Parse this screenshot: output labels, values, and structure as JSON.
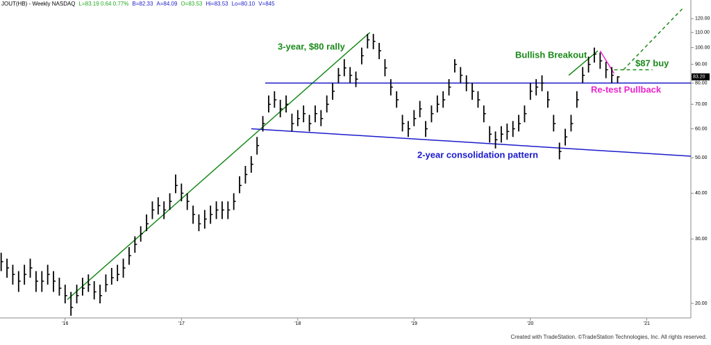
{
  "chart_data": {
    "type": "ohlc",
    "header": [
      {
        "text": "JOUT(HB) - Weekly  NASDAQ",
        "color": "#000000"
      },
      {
        "text": "L=83.19 0.64 0.77%",
        "color": "#22aa22"
      },
      {
        "text": "B=82.33",
        "color": "#2222cc"
      },
      {
        "text": "A=84.09",
        "color": "#2222cc"
      },
      {
        "text": "O=83.53",
        "color": "#22aa22"
      },
      {
        "text": "Hi=83.53",
        "color": "#2222cc"
      },
      {
        "text": "Lo=80.10",
        "color": "#2222cc"
      },
      {
        "text": "V=845",
        "color": "#2222cc"
      }
    ],
    "footer": "Created with TradeStation. ©TradeStation Technologies, Inc. All rights reserved.",
    "log_scale": true,
    "color": "#000000",
    "xlim": [
      2015.44,
      2021.38
    ],
    "ylim": [
      18.25,
      130.3
    ],
    "xticks": [
      {
        "value": 2016,
        "label": "'16"
      },
      {
        "value": 2017,
        "label": "'17"
      },
      {
        "value": 2018,
        "label": "'18"
      },
      {
        "value": 2019,
        "label": "'19"
      },
      {
        "value": 2020,
        "label": "'20"
      },
      {
        "value": 2021,
        "label": "'21"
      }
    ],
    "yticks": [
      {
        "value": 20,
        "label": "20.00"
      },
      {
        "value": 30,
        "label": "30.00"
      },
      {
        "value": 40,
        "label": "40.00"
      },
      {
        "value": 50,
        "label": "50.00"
      },
      {
        "value": 60,
        "label": "60.00"
      },
      {
        "value": 70,
        "label": "70.00"
      },
      {
        "value": 80,
        "label": "80.00"
      },
      {
        "value": 90,
        "label": "90.00"
      },
      {
        "value": 100,
        "label": "100.00"
      },
      {
        "value": 110,
        "label": "110.00"
      },
      {
        "value": 120,
        "label": "120.00"
      }
    ],
    "last_price": {
      "value": 83.2,
      "label": "83.20"
    },
    "x": [
      2015.45,
      2015.5,
      2015.55,
      2015.6,
      2015.65,
      2015.7,
      2015.75,
      2015.8,
      2015.85,
      2015.9,
      2015.95,
      2016.0,
      2016.05,
      2016.1,
      2016.15,
      2016.2,
      2016.25,
      2016.3,
      2016.35,
      2016.4,
      2016.45,
      2016.5,
      2016.55,
      2016.6,
      2016.65,
      2016.7,
      2016.75,
      2016.8,
      2016.85,
      2016.9,
      2016.95,
      2017.0,
      2017.05,
      2017.1,
      2017.15,
      2017.2,
      2017.25,
      2017.3,
      2017.35,
      2017.4,
      2017.45,
      2017.5,
      2017.55,
      2017.6,
      2017.65,
      2017.7,
      2017.75,
      2017.8,
      2017.85,
      2017.9,
      2017.95,
      2018.0,
      2018.05,
      2018.1,
      2018.15,
      2018.2,
      2018.25,
      2018.3,
      2018.35,
      2018.4,
      2018.45,
      2018.5,
      2018.55,
      2018.6,
      2018.65,
      2018.7,
      2018.75,
      2018.8,
      2018.85,
      2018.9,
      2018.95,
      2019.0,
      2019.05,
      2019.1,
      2019.15,
      2019.2,
      2019.25,
      2019.3,
      2019.35,
      2019.4,
      2019.45,
      2019.5,
      2019.55,
      2019.6,
      2019.65,
      2019.7,
      2019.75,
      2019.8,
      2019.85,
      2019.9,
      2019.95,
      2020.0,
      2020.05,
      2020.1,
      2020.15,
      2020.2,
      2020.25,
      2020.3,
      2020.35,
      2020.4,
      2020.45,
      2020.5,
      2020.55,
      2020.6,
      2020.65,
      2020.7,
      2020.75
    ],
    "high": [
      27.5,
      26.5,
      25.5,
      24.5,
      25.5,
      26.5,
      24.5,
      24.5,
      25.5,
      24.5,
      23.5,
      22.5,
      21.5,
      22.5,
      23.5,
      24,
      23,
      22.5,
      24,
      25,
      25.5,
      26.5,
      28.5,
      30.5,
      32.5,
      35,
      38,
      39,
      38,
      40,
      45,
      42.5,
      40,
      37,
      35,
      36,
      37,
      38,
      38,
      38,
      40,
      44.5,
      47.5,
      50.5,
      57,
      65,
      74,
      76,
      72,
      74,
      66,
      67.5,
      69.5,
      65.5,
      69.5,
      67.5,
      74,
      80,
      88,
      93,
      88.5,
      86,
      100,
      109,
      109,
      103,
      93,
      82,
      76,
      65.5,
      63,
      67.5,
      71.5,
      63,
      69.5,
      74,
      76,
      82,
      93,
      88.5,
      84,
      80,
      76,
      69.5,
      61,
      59,
      61,
      62,
      63,
      65.5,
      69.5,
      80,
      82,
      84,
      76,
      65.5,
      55,
      60,
      65.5,
      76,
      88.5,
      94.5,
      100,
      97,
      91.5,
      88.5,
      83.53
    ],
    "low": [
      24.5,
      23.5,
      22.5,
      21.5,
      22.5,
      23.5,
      21.5,
      21.5,
      22.5,
      21.5,
      21,
      20,
      18.5,
      20,
      21,
      21.5,
      20.5,
      20,
      21.5,
      22.5,
      23,
      23.5,
      25.5,
      27.5,
      29.5,
      31.5,
      34,
      35,
      34,
      36,
      40,
      38,
      36,
      33,
      31.5,
      32,
      33,
      34,
      34,
      34,
      36,
      40,
      42.5,
      45.5,
      51,
      59,
      66.5,
      68.5,
      64.5,
      66.5,
      59,
      61,
      62.5,
      59,
      62.5,
      61,
      66.5,
      72,
      80,
      83.5,
      80,
      78,
      90,
      99.5,
      99,
      93,
      83.5,
      74,
      68.5,
      59,
      57,
      61,
      64.5,
      57,
      62.5,
      66.5,
      68.5,
      74,
      85.5,
      80,
      76,
      72,
      68.5,
      62.5,
      55,
      53,
      55,
      56,
      57,
      59,
      62.5,
      72,
      74,
      76,
      68.5,
      59,
      49.5,
      54,
      59,
      68.5,
      80,
      85.5,
      91,
      87.5,
      82.5,
      80,
      80.1
    ],
    "close": [
      26,
      25,
      24,
      23,
      24,
      25,
      23,
      23,
      24,
      23,
      22,
      21,
      19.5,
      21,
      22,
      22.5,
      21.5,
      21,
      22.5,
      23.5,
      24,
      25,
      27,
      29,
      31,
      33,
      36,
      37,
      36,
      38,
      42,
      40,
      38,
      35,
      33,
      34,
      35,
      36,
      36,
      36,
      38,
      42,
      45,
      48,
      54,
      62,
      70,
      72,
      68,
      70,
      62,
      64,
      66,
      62,
      66,
      64,
      70,
      76,
      84,
      88,
      84,
      82,
      95,
      105,
      104,
      98,
      88,
      78,
      72,
      62,
      60,
      64,
      68,
      60,
      66,
      70,
      72,
      78,
      90,
      84,
      80,
      76,
      72,
      66,
      58,
      56,
      58,
      59,
      60,
      62,
      66,
      76,
      78,
      80,
      72,
      62,
      52,
      57,
      62,
      72,
      84,
      90,
      96,
      92,
      87,
      84,
      83.19
    ],
    "lines": [
      {
        "color": "#1a8a1a",
        "dash": false,
        "points": [
          [
            2016.02,
            20.5
          ],
          [
            2018.62,
            110
          ]
        ]
      },
      {
        "color": "#1a1acc",
        "dash": false,
        "points": [
          [
            2017.72,
            80
          ],
          [
            2021.38,
            80
          ]
        ]
      },
      {
        "color": "#1a1acc",
        "dash": false,
        "points": [
          [
            2017.6,
            60
          ],
          [
            2021.38,
            50.5
          ]
        ]
      },
      {
        "color": "#1a8a1a",
        "dash": false,
        "points": [
          [
            2020.33,
            84
          ],
          [
            2020.58,
            98
          ]
        ]
      },
      {
        "color": "#ee22cc",
        "dash": false,
        "points": [
          [
            2020.6,
            98
          ],
          [
            2020.72,
            85
          ]
        ]
      },
      {
        "color": "#1a8a1a",
        "dash": true,
        "points": [
          [
            2020.72,
            87
          ],
          [
            2021.05,
            87
          ]
        ]
      },
      {
        "color": "#1a8a1a",
        "dash": true,
        "points": [
          [
            2020.8,
            87
          ],
          [
            2021.31,
            128
          ]
        ]
      }
    ],
    "annotations": [
      {
        "text": "3-year, $80 rally",
        "color": "#1a8a1a"
      },
      {
        "text": "Bullish Breakout",
        "color": "#1a8a1a"
      },
      {
        "text": "$87 buy",
        "color": "#1a8a1a"
      },
      {
        "text": "Re-test Pullback",
        "color": "#ee22cc"
      },
      {
        "text": "2-year consolidation pattern",
        "color": "#1a1acc"
      }
    ]
  }
}
